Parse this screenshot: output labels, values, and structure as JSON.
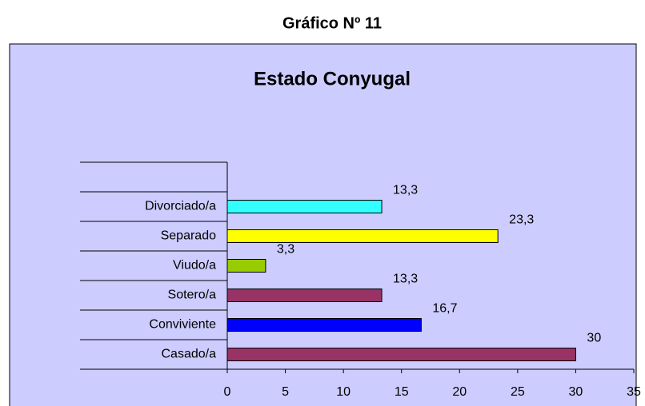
{
  "page_title": "Gráfico Nº 11",
  "chart_data": {
    "type": "barh",
    "title": "Estado Conyugal",
    "categories": [
      "Casado/a",
      "Conviviente",
      "Sotero/a",
      "Viudo/a",
      "Separado",
      "Divorciado/a",
      null
    ],
    "values": [
      30,
      16.7,
      13.3,
      3.3,
      23.3,
      13.3,
      null
    ],
    "value_labels": [
      "30",
      "16,7",
      "13,3",
      "3,3",
      "23,3",
      "13,3",
      null
    ],
    "colors": [
      "#993366",
      "#0000ff",
      "#993366",
      "#99cc00",
      "#ffff00",
      "#33ffff",
      null
    ],
    "xlim": [
      0,
      35
    ],
    "xticks": [
      0,
      5,
      10,
      15,
      20,
      25,
      30,
      35
    ]
  }
}
